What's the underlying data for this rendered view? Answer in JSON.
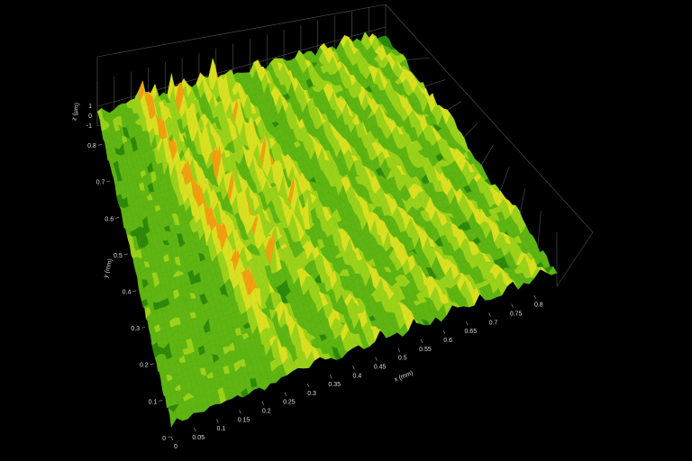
{
  "chart_data": {
    "type": "surface",
    "x_label": "x (mm)",
    "y_label": "y (mm)",
    "z_label": "z (µm)",
    "xlim": [
      0,
      0.85
    ],
    "ylim": [
      0,
      0.85
    ],
    "zlim": [
      -1,
      1
    ],
    "xticks": [
      0,
      0.05,
      0.1,
      0.15,
      0.2,
      0.25,
      0.3,
      0.35,
      0.4,
      0.45,
      0.5,
      0.55,
      0.6,
      0.65,
      0.7,
      0.75,
      0.8
    ],
    "yticks": [
      0,
      0.1,
      0.2,
      0.3,
      0.4,
      0.5,
      0.6,
      0.7,
      0.8
    ],
    "zticks": [
      -1,
      0,
      1
    ]
  }
}
